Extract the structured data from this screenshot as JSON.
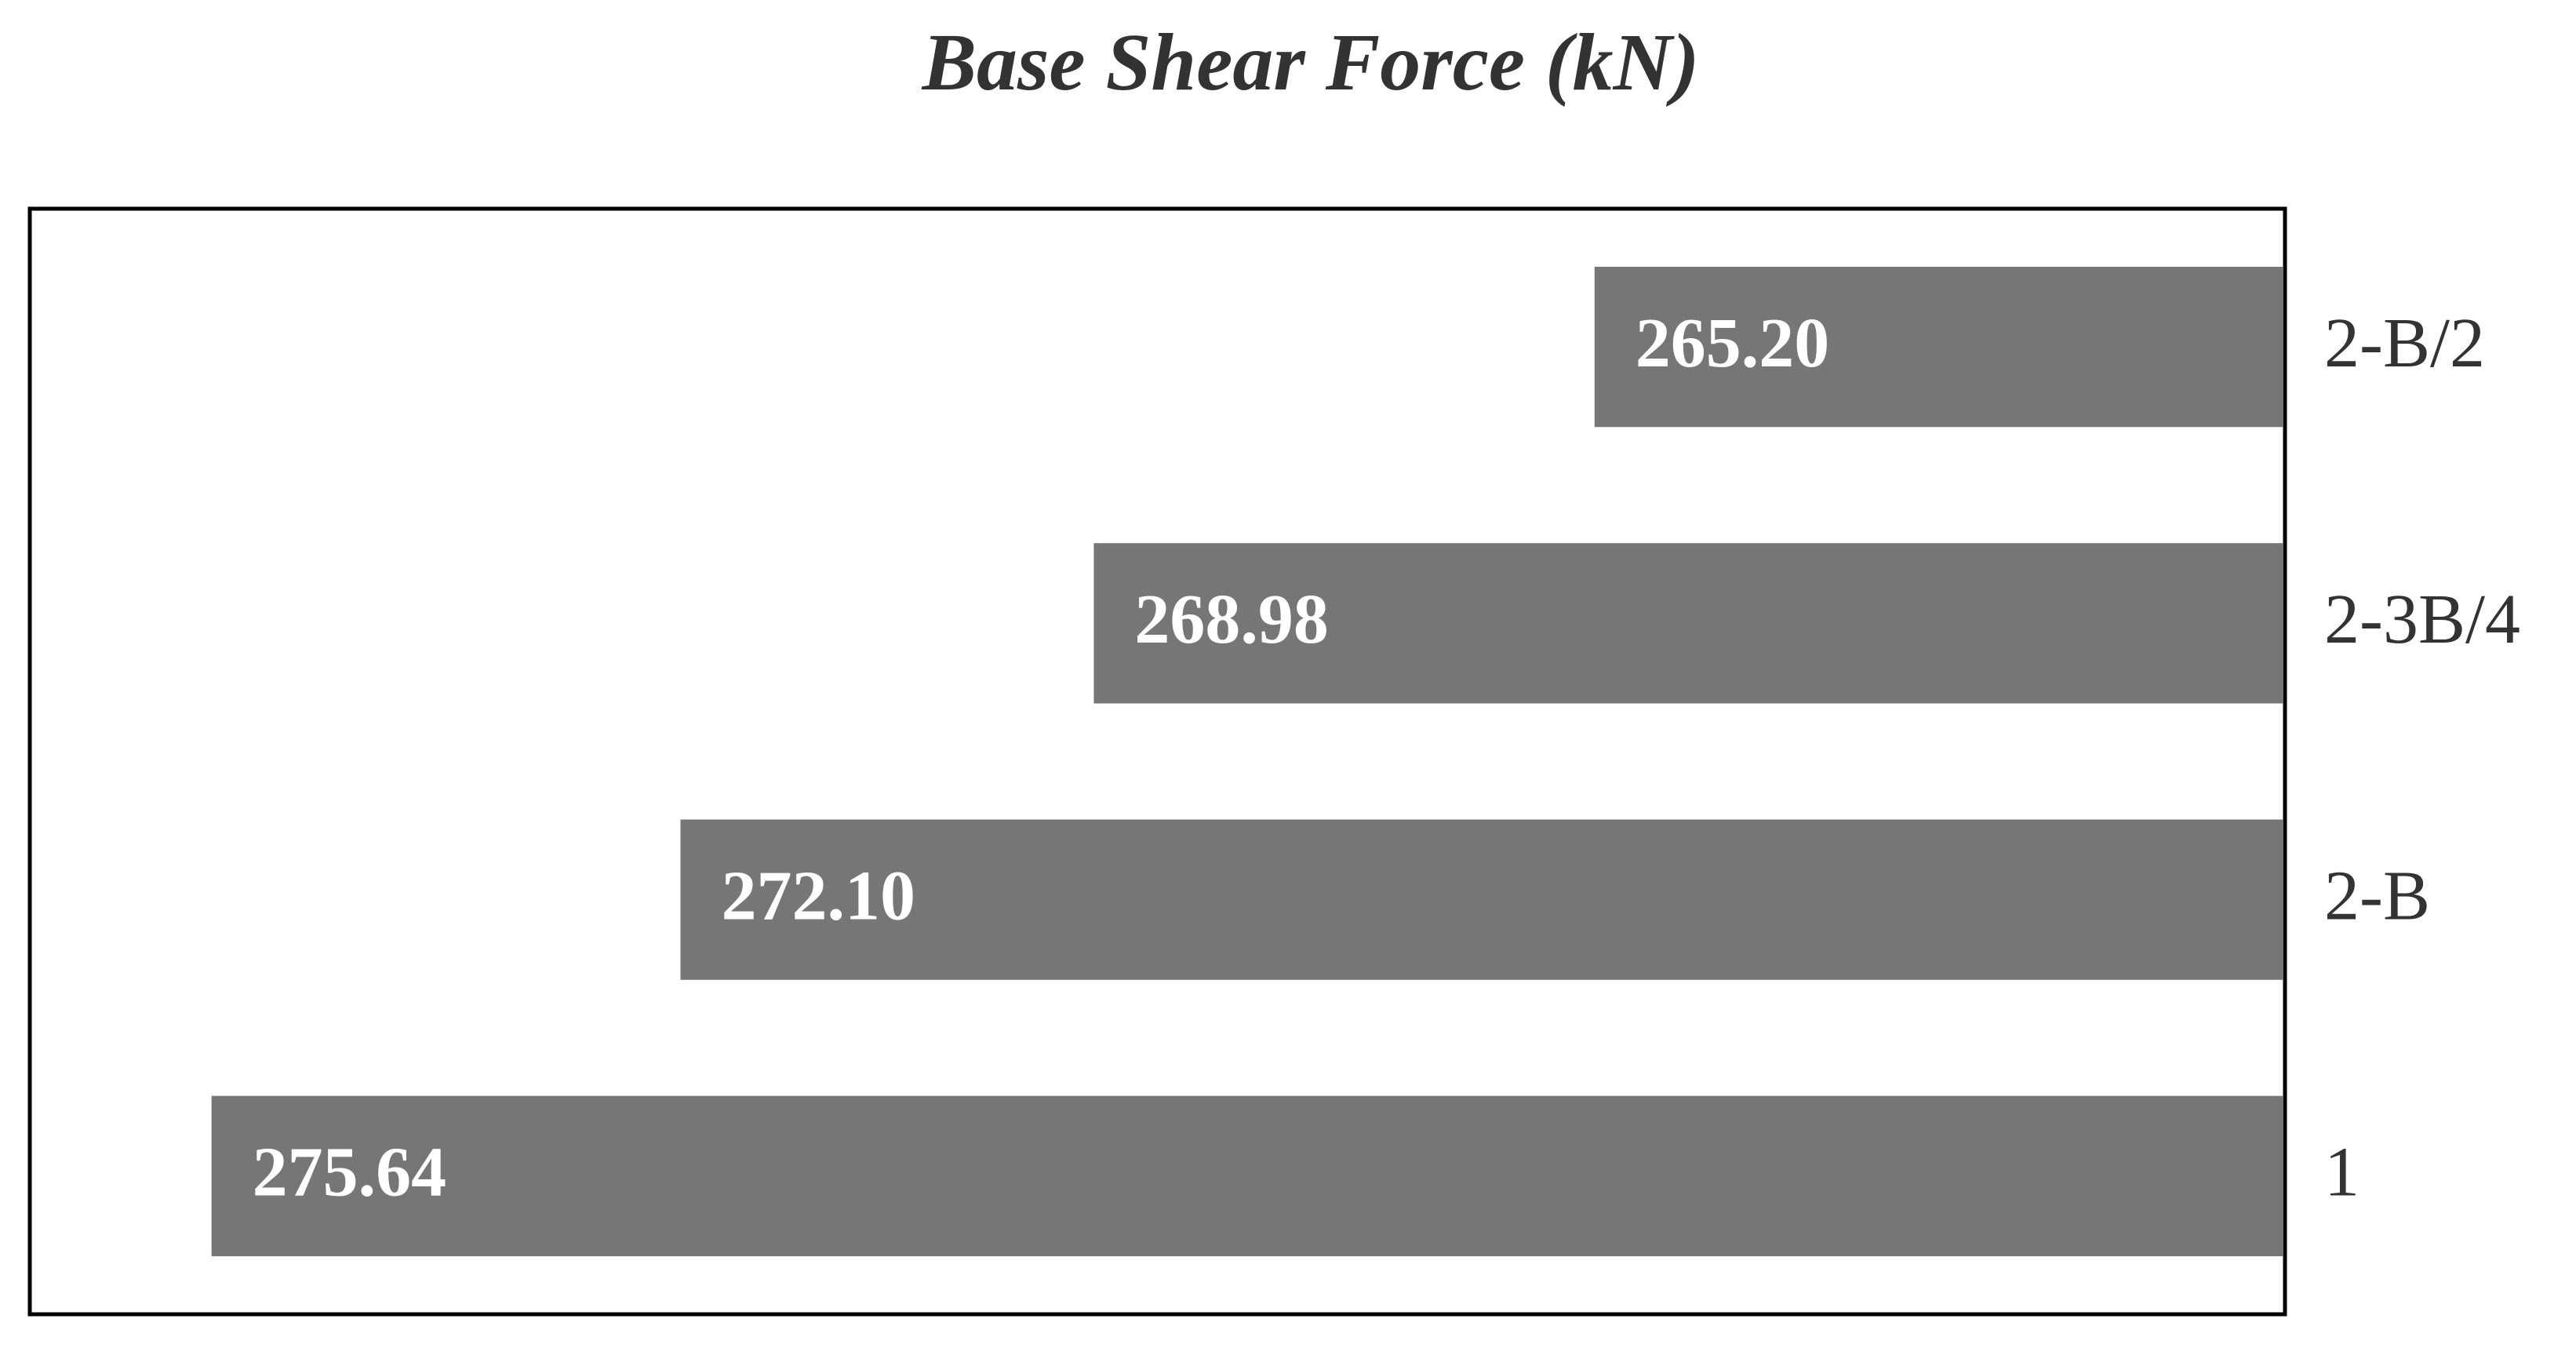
{
  "chart_data": {
    "type": "bar",
    "orientation": "horizontal",
    "title": "Base Shear Force (kN)",
    "categories": [
      "2-B/2",
      "2-3B/4",
      "2-B",
      "1"
    ],
    "values": [
      265.2,
      268.98,
      272.1,
      275.64
    ],
    "value_labels": [
      "265.20",
      "268.98",
      "272.10",
      "275.64"
    ],
    "color": "#767676",
    "xlim": [
      260,
      277
    ],
    "x_reversed": true,
    "category_axis": "right",
    "grid": false
  }
}
